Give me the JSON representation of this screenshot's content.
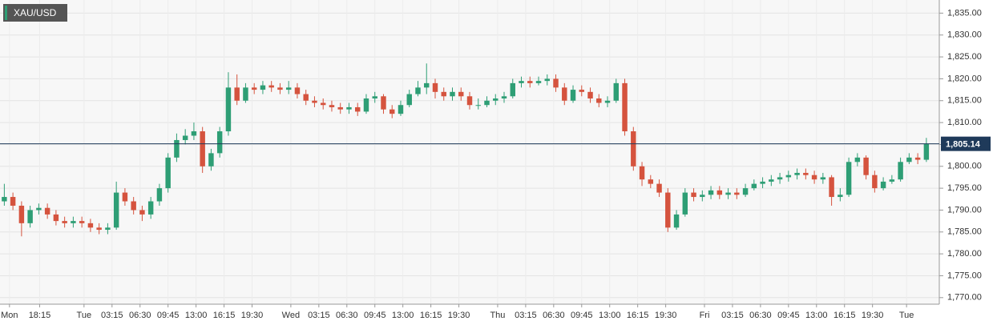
{
  "chart_data": {
    "type": "candlestick",
    "title": "XAU/USD",
    "x": [
      0.5,
      1.5,
      2.5,
      3.5,
      4.5,
      5.5,
      6.5,
      7.5,
      8.5,
      9.5,
      10.5,
      11.5,
      12.5,
      13.5,
      14.5,
      15.5,
      16.5,
      17.5,
      18.5,
      19.5,
      20.5,
      21.5,
      22.5,
      23.5,
      24.5,
      25.5,
      26.5,
      27.5,
      28.5,
      29.5,
      30.5,
      31.5,
      32.5,
      33.5,
      34.5,
      35.5,
      36.5,
      37.5,
      38.5,
      39.5,
      40.5,
      41.5,
      42.5,
      43.5,
      44.5,
      45.5,
      46.5,
      47.5,
      48.5,
      49.5,
      50.5,
      51.5,
      52.5,
      53.5,
      54.5,
      55.5,
      56.5,
      57.5,
      58.5,
      59.5,
      60.5,
      61.5,
      62.5,
      63.5,
      64.5,
      65.5,
      66.5,
      67.5,
      68.5,
      69.5,
      70.5,
      71.5,
      72.5,
      73.5,
      74.5,
      75.5,
      76.5,
      77.5,
      78.5,
      79.5,
      80.5,
      81.5,
      82.5,
      83.5,
      84.5,
      85.5,
      86.5,
      87.5,
      88.5,
      89.5,
      90.5,
      91.5,
      92.5,
      93.5,
      94.5,
      95.5,
      96.5,
      97.5,
      98.5,
      99.5,
      100.5,
      101.5,
      102.5,
      103.5,
      104.5,
      105.5,
      106.5,
      107.5
    ],
    "open": [
      1792,
      1793,
      1791,
      1787,
      1790,
      1790.5,
      1789,
      1787.5,
      1787,
      1787.5,
      1787,
      1786,
      1785.5,
      1786,
      1794,
      1792,
      1790,
      1789,
      1792,
      1795,
      1802,
      1806,
      1807,
      1808,
      1800,
      1803,
      1808,
      1818,
      1815,
      1818,
      1817.5,
      1818.5,
      1818,
      1817.5,
      1818,
      1816.5,
      1815,
      1814.5,
      1814,
      1813.5,
      1813,
      1813.5,
      1812.5,
      1815.5,
      1816,
      1813,
      1812,
      1814,
      1816.5,
      1818,
      1819,
      1817,
      1816,
      1817,
      1816,
      1814,
      1814,
      1815,
      1815.5,
      1816,
      1819,
      1819.5,
      1819,
      1819.5,
      1820,
      1818,
      1815,
      1817.5,
      1817,
      1815.5,
      1814.5,
      1815,
      1819,
      1808,
      1800,
      1797,
      1796,
      1794,
      1786,
      1789,
      1794,
      1793,
      1793.5,
      1794.5,
      1793.5,
      1794,
      1793.5,
      1795,
      1796,
      1796.5,
      1797,
      1797.5,
      1798,
      1798.5,
      1798,
      1797,
      1797.5,
      1793,
      1793.5,
      1801,
      1802,
      1798,
      1795,
      1796.5,
      1797,
      1801,
      1802,
      1801.5
    ],
    "high": [
      1796,
      1794,
      1792,
      1791,
      1791.5,
      1791.5,
      1790,
      1788.5,
      1788.5,
      1788.5,
      1788,
      1787,
      1787,
      1796.5,
      1795,
      1793,
      1791,
      1793,
      1796,
      1803,
      1807.5,
      1808.5,
      1810,
      1809,
      1804,
      1809,
      1821.5,
      1821,
      1819,
      1819,
      1819.5,
      1819.5,
      1819,
      1819.5,
      1819,
      1817.5,
      1816,
      1815.5,
      1815,
      1814.5,
      1814.5,
      1814.5,
      1816.5,
      1817,
      1816.5,
      1814,
      1815,
      1817.5,
      1819.5,
      1823.5,
      1820,
      1818,
      1818,
      1818,
      1817,
      1815.5,
      1816,
      1816.5,
      1817,
      1820,
      1820.5,
      1820.5,
      1820.5,
      1821,
      1821,
      1819,
      1818.5,
      1818.5,
      1818,
      1816.5,
      1816,
      1820,
      1820,
      1809,
      1801,
      1798,
      1797,
      1795,
      1790,
      1795,
      1795,
      1794.5,
      1795.5,
      1795.5,
      1795,
      1795,
      1796,
      1797,
      1797.5,
      1798,
      1798.5,
      1799,
      1799.5,
      1799.5,
      1799,
      1798.5,
      1798,
      1795,
      1802,
      1803,
      1802.5,
      1799,
      1797.5,
      1798,
      1802,
      1803,
      1803,
      1806.5
    ],
    "low": [
      1791,
      1790,
      1784,
      1786,
      1789,
      1788,
      1786.5,
      1786,
      1786,
      1786,
      1785,
      1784.5,
      1784.5,
      1785.5,
      1791,
      1789,
      1787.5,
      1788,
      1791,
      1794,
      1801,
      1805,
      1806,
      1798.5,
      1799,
      1802,
      1807,
      1814,
      1814.5,
      1816.5,
      1816.5,
      1817,
      1816.5,
      1816.5,
      1815.5,
      1814,
      1813.5,
      1813,
      1812.5,
      1812,
      1812,
      1811.5,
      1812,
      1814.5,
      1812,
      1811,
      1811.5,
      1813.5,
      1816,
      1816.5,
      1815.5,
      1815,
      1815,
      1815,
      1813,
      1813,
      1813.5,
      1814,
      1814.5,
      1815.5,
      1818,
      1818,
      1818.5,
      1818.5,
      1817,
      1814,
      1814.5,
      1816,
      1814.5,
      1813.5,
      1813.5,
      1814.5,
      1807,
      1799,
      1795.5,
      1795,
      1793,
      1785,
      1785.5,
      1788.5,
      1792,
      1792,
      1792.5,
      1792.5,
      1792.5,
      1792.5,
      1793,
      1794.5,
      1795,
      1795.5,
      1796,
      1796.5,
      1797,
      1797,
      1796,
      1796,
      1791,
      1792,
      1793,
      1800,
      1797,
      1794,
      1794.5,
      1796,
      1796.5,
      1800.5,
      1800.5,
      1801
    ],
    "close": [
      1793,
      1791,
      1787,
      1790,
      1790.5,
      1789,
      1787.5,
      1787,
      1787.5,
      1787,
      1786,
      1785.5,
      1786,
      1794,
      1792,
      1790,
      1789,
      1792,
      1795,
      1802,
      1806,
      1807,
      1808,
      1800,
      1803,
      1808,
      1818,
      1815,
      1818,
      1817.5,
      1818.5,
      1818,
      1817.5,
      1818,
      1816.5,
      1815,
      1814.5,
      1814,
      1813.5,
      1813,
      1813.5,
      1812.5,
      1815.5,
      1816,
      1813,
      1812,
      1814,
      1816.5,
      1818,
      1819,
      1817,
      1816,
      1817,
      1816,
      1814,
      1814,
      1815,
      1815.5,
      1816,
      1819,
      1819.5,
      1819,
      1819.5,
      1820,
      1818,
      1815,
      1817.5,
      1817,
      1815.5,
      1814.5,
      1815,
      1819,
      1808,
      1800,
      1797,
      1796,
      1794,
      1786,
      1789,
      1794,
      1793,
      1793.5,
      1794.5,
      1793.5,
      1794,
      1793.5,
      1795,
      1796,
      1796.5,
      1797,
      1797.5,
      1798,
      1798.5,
      1798,
      1797,
      1797.5,
      1793,
      1793.5,
      1801,
      1802,
      1798,
      1795,
      1796.5,
      1797,
      1801,
      1802,
      1801.5,
      1805.14
    ],
    "colors": {
      "up": "#2e9e75",
      "down": "#d5533e"
    },
    "last_price": {
      "value": 1805.14,
      "label": "1,805.14"
    },
    "last_price_color": "#1f3a5a",
    "xlim": [
      0,
      109
    ],
    "xticks": [
      {
        "value": 1.1,
        "label": "Mon"
      },
      {
        "value": 4.6,
        "label": "18:15"
      },
      {
        "value": 9.75,
        "label": "Tue"
      },
      {
        "value": 13,
        "label": "03:15"
      },
      {
        "value": 16.25,
        "label": "06:30"
      },
      {
        "value": 19.5,
        "label": "09:45"
      },
      {
        "value": 22.75,
        "label": "13:00"
      },
      {
        "value": 26,
        "label": "16:15"
      },
      {
        "value": 29.25,
        "label": "19:30"
      },
      {
        "value": 33.75,
        "label": "Wed"
      },
      {
        "value": 37,
        "label": "03:15"
      },
      {
        "value": 40.25,
        "label": "06:30"
      },
      {
        "value": 43.5,
        "label": "09:45"
      },
      {
        "value": 46.75,
        "label": "13:00"
      },
      {
        "value": 50,
        "label": "16:15"
      },
      {
        "value": 53.25,
        "label": "19:30"
      },
      {
        "value": 57.75,
        "label": "Thu"
      },
      {
        "value": 61,
        "label": "03:15"
      },
      {
        "value": 64.25,
        "label": "06:30"
      },
      {
        "value": 67.5,
        "label": "09:45"
      },
      {
        "value": 70.75,
        "label": "13:00"
      },
      {
        "value": 74,
        "label": "16:15"
      },
      {
        "value": 77.25,
        "label": "19:30"
      },
      {
        "value": 81.75,
        "label": "Fri"
      },
      {
        "value": 85,
        "label": "03:15"
      },
      {
        "value": 88.25,
        "label": "06:30"
      },
      {
        "value": 91.5,
        "label": "09:45"
      },
      {
        "value": 94.75,
        "label": "13:00"
      },
      {
        "value": 98,
        "label": "16:15"
      },
      {
        "value": 101.25,
        "label": "19:30"
      },
      {
        "value": 105.2,
        "label": "Tue"
      }
    ],
    "ylim": [
      1768.5,
      1838
    ],
    "yticks": [
      {
        "value": 1770,
        "label": "1,770.00"
      },
      {
        "value": 1775,
        "label": "1,775.00"
      },
      {
        "value": 1780,
        "label": "1,780.00"
      },
      {
        "value": 1785,
        "label": "1,785.00"
      },
      {
        "value": 1790,
        "label": "1,790.00"
      },
      {
        "value": 1795,
        "label": "1,795.00"
      },
      {
        "value": 1800,
        "label": "1,800.00"
      },
      {
        "value": 1805,
        "label": "1,805.00"
      },
      {
        "value": 1810,
        "label": "1,810.00"
      },
      {
        "value": 1815,
        "label": "1,815.00"
      },
      {
        "value": 1820,
        "label": "1,820.00"
      },
      {
        "value": 1825,
        "label": "1,825.00"
      },
      {
        "value": 1830,
        "label": "1,830.00"
      },
      {
        "value": 1835,
        "label": "1,835.00"
      }
    ],
    "grid": true
  }
}
